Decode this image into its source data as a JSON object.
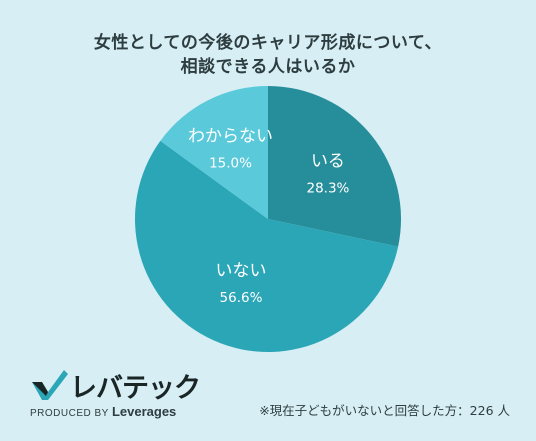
{
  "title_line1": "女性としての今後のキャリア形成について、",
  "title_line2": "相談できる人はいるか",
  "chart_data": {
    "type": "pie",
    "title": "女性としての今後のキャリア形成について、相談できる人はいるか",
    "slices": [
      {
        "label": "いる",
        "value": 28.3,
        "value_label": "28.3%",
        "color": "#268d9a"
      },
      {
        "label": "いない",
        "value": 56.6,
        "value_label": "56.6%",
        "color": "#2aa6b6"
      },
      {
        "label": "わからない",
        "value": 15.0,
        "value_label": "15.0%",
        "color": "#5ac9da"
      }
    ],
    "start": "12 o'clock",
    "direction": "clockwise"
  },
  "logo": {
    "text": "レバテック",
    "produced_by": "PRODUCED BY",
    "brand": "Leverages"
  },
  "note": "※現在子どもがいないと回答した方：226 人",
  "colors": {
    "background": "#d6eef4",
    "title": "#2e3d3f"
  }
}
